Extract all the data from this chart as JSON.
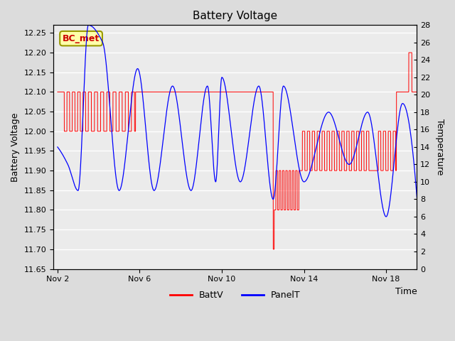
{
  "title": "Battery Voltage",
  "xlabel": "Time",
  "ylabel_left": "Battery Voltage",
  "ylabel_right": "Temperature",
  "xlim_days": [
    -0.2,
    17.5
  ],
  "ylim_left": [
    11.65,
    12.27
  ],
  "ylim_right": [
    0,
    28
  ],
  "yticks_left": [
    11.65,
    11.7,
    11.75,
    11.8,
    11.85,
    11.9,
    11.95,
    12.0,
    12.05,
    12.1,
    12.15,
    12.2,
    12.25
  ],
  "yticks_right": [
    0,
    2,
    4,
    6,
    8,
    10,
    12,
    14,
    16,
    18,
    20,
    22,
    24,
    26,
    28
  ],
  "xtick_positions": [
    0,
    4,
    8,
    12,
    16
  ],
  "xtick_labels": [
    "Nov 2",
    "Nov 6",
    "Nov 10",
    "Nov 14",
    "Nov 18"
  ],
  "background_color": "#dcdcdc",
  "plot_bg_color": "#ebebeb",
  "grid_color": "#ffffff",
  "battv_color": "#ff0000",
  "panelt_color": "#0000ff",
  "annotation_text": "BC_met",
  "legend_battv": "BattV",
  "legend_panelt": "PanelT",
  "panelt_peaks_x": [
    0.0,
    1.5,
    2.2,
    3.9,
    5.6,
    7.3,
    8.0,
    9.8,
    11.0,
    13.2,
    15.1,
    16.8
  ],
  "panelt_peaks_y": [
    14,
    28,
    26,
    23,
    21,
    21,
    22,
    21,
    21,
    18,
    18,
    19
  ],
  "panelt_troughs_x": [
    0.5,
    1.0,
    3.0,
    4.7,
    6.5,
    7.7,
    8.9,
    10.5,
    12.0,
    14.2,
    16.0,
    17.4
  ],
  "panelt_troughs_y": [
    12,
    9,
    9,
    9,
    9,
    10,
    10,
    8,
    10,
    12,
    6,
    11
  ]
}
